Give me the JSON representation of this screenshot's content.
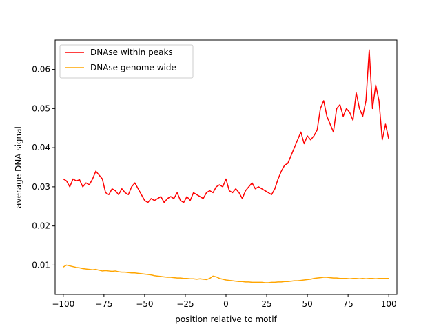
{
  "chart_data": {
    "type": "line",
    "title": "",
    "xlabel": "position relative to motif",
    "ylabel": "average DNA signal",
    "xlim": [
      -105,
      105
    ],
    "ylim": [
      0.0025,
      0.0675
    ],
    "xticks": [
      -100,
      -75,
      -50,
      -25,
      0,
      25,
      50,
      75,
      100
    ],
    "yticks": [
      0.01,
      0.02,
      0.03,
      0.04,
      0.05,
      0.06
    ],
    "ytick_labels": [
      "0.01",
      "0.02",
      "0.03",
      "0.04",
      "0.05",
      "0.06"
    ],
    "grid": false,
    "legend_position": "top-left",
    "x": [
      -100,
      -98,
      -96,
      -94,
      -92,
      -90,
      -88,
      -86,
      -84,
      -82,
      -80,
      -78,
      -76,
      -74,
      -72,
      -70,
      -68,
      -66,
      -64,
      -62,
      -60,
      -58,
      -56,
      -54,
      -52,
      -50,
      -48,
      -46,
      -44,
      -42,
      -40,
      -38,
      -36,
      -34,
      -32,
      -30,
      -28,
      -26,
      -24,
      -22,
      -20,
      -18,
      -16,
      -14,
      -12,
      -10,
      -8,
      -6,
      -4,
      -2,
      0,
      2,
      4,
      6,
      8,
      10,
      12,
      14,
      16,
      18,
      20,
      22,
      24,
      26,
      28,
      30,
      32,
      34,
      36,
      38,
      40,
      42,
      44,
      46,
      48,
      50,
      52,
      54,
      56,
      58,
      60,
      62,
      64,
      66,
      68,
      70,
      72,
      74,
      76,
      78,
      80,
      82,
      84,
      86,
      88,
      90,
      92,
      94,
      96,
      98,
      100
    ],
    "series": [
      {
        "name": "DNAse within peaks",
        "color": "#ff0000",
        "values": [
          0.032,
          0.0315,
          0.03,
          0.032,
          0.0315,
          0.0318,
          0.03,
          0.031,
          0.0305,
          0.032,
          0.034,
          0.033,
          0.032,
          0.0285,
          0.028,
          0.0295,
          0.029,
          0.028,
          0.0295,
          0.0285,
          0.028,
          0.03,
          0.031,
          0.0295,
          0.028,
          0.0265,
          0.026,
          0.027,
          0.0265,
          0.027,
          0.0275,
          0.026,
          0.027,
          0.0275,
          0.027,
          0.0285,
          0.0265,
          0.026,
          0.0275,
          0.0265,
          0.0285,
          0.028,
          0.0275,
          0.027,
          0.0285,
          0.029,
          0.0285,
          0.03,
          0.0305,
          0.03,
          0.032,
          0.029,
          0.0285,
          0.0295,
          0.0285,
          0.027,
          0.029,
          0.03,
          0.031,
          0.0295,
          0.03,
          0.0295,
          0.029,
          0.0285,
          0.028,
          0.0295,
          0.032,
          0.034,
          0.0355,
          0.036,
          0.038,
          0.04,
          0.042,
          0.044,
          0.041,
          0.043,
          0.042,
          0.043,
          0.0445,
          0.05,
          0.052,
          0.048,
          0.046,
          0.044,
          0.05,
          0.051,
          0.048,
          0.05,
          0.049,
          0.047,
          0.054,
          0.05,
          0.048,
          0.052,
          0.065,
          0.05,
          0.056,
          0.052,
          0.042,
          0.046,
          0.0422
        ]
      },
      {
        "name": "DNAse genome wide",
        "color": "#ffa500",
        "values": [
          0.0095,
          0.01,
          0.0098,
          0.0096,
          0.0094,
          0.0093,
          0.0091,
          0.009,
          0.0089,
          0.0088,
          0.0089,
          0.0087,
          0.0085,
          0.0086,
          0.0085,
          0.0084,
          0.0085,
          0.0083,
          0.0082,
          0.0082,
          0.0081,
          0.008,
          0.008,
          0.0079,
          0.0078,
          0.0077,
          0.0076,
          0.0075,
          0.0073,
          0.0072,
          0.0071,
          0.007,
          0.0069,
          0.0069,
          0.0068,
          0.0067,
          0.0067,
          0.0066,
          0.0066,
          0.0065,
          0.0065,
          0.0064,
          0.0065,
          0.0064,
          0.0063,
          0.0066,
          0.0072,
          0.007,
          0.0066,
          0.0064,
          0.0062,
          0.0061,
          0.006,
          0.0059,
          0.0058,
          0.0058,
          0.0057,
          0.0057,
          0.0056,
          0.0056,
          0.0056,
          0.0056,
          0.0055,
          0.0055,
          0.0056,
          0.0056,
          0.0057,
          0.0057,
          0.0058,
          0.0058,
          0.0059,
          0.006,
          0.006,
          0.0061,
          0.0062,
          0.0063,
          0.0064,
          0.0066,
          0.0067,
          0.0068,
          0.0069,
          0.0069,
          0.0068,
          0.0067,
          0.0067,
          0.0066,
          0.0066,
          0.0066,
          0.0065,
          0.0066,
          0.0066,
          0.0065,
          0.0066,
          0.0065,
          0.0066,
          0.0066,
          0.0065,
          0.0066,
          0.0066,
          0.0066,
          0.0066
        ]
      }
    ]
  }
}
